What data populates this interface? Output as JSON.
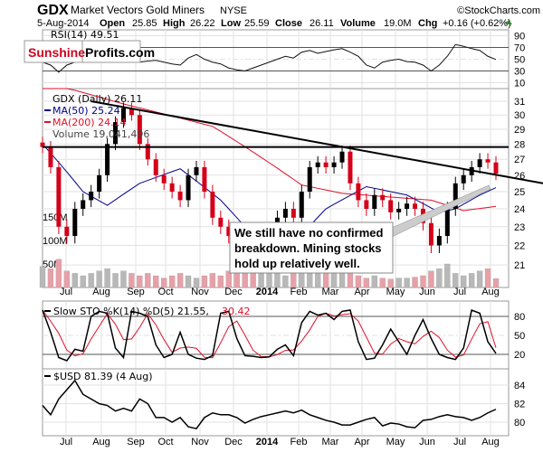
{
  "header": {
    "symbol": "GDX",
    "name": "Market Vectors Gold Miners",
    "exchange": "NYSE",
    "credit": "©StockCharts.com",
    "date": "5-Aug-2014",
    "open_label": "Open",
    "open": "25.85",
    "high_label": "High",
    "high": "26.22",
    "low_label": "Low",
    "low": "25.59",
    "close_label": "Close",
    "close": "26.11",
    "volume_label": "Volume",
    "volume": "19.0M",
    "chg_label": "Chg",
    "chg": "+0.16 (+0.62%)"
  },
  "logo": {
    "part1": "Sunshine",
    "part2": "Profits.com"
  },
  "annotation": {
    "lines": [
      "We still have no confirmed",
      "breakdown. Mining stocks",
      "hold up relatively well."
    ]
  },
  "colors": {
    "up": "#000000",
    "down": "#d4001a",
    "ma50": "#00008b",
    "ma200": "#e0102a",
    "volume": "#b8b8b8",
    "volume_down": "#e8a0a8"
  },
  "chart_data": [
    {
      "type": "line",
      "title": "RSI(14) 49.51",
      "panel": "rsi",
      "legend": "RSI(14) 49.51",
      "ylim": [
        0,
        100
      ],
      "yticks": [
        "90",
        "70",
        "50",
        "30",
        "10"
      ],
      "values": [
        45,
        40,
        28,
        40,
        45,
        48,
        55,
        58,
        70,
        65,
        60,
        55,
        45,
        47,
        48,
        45,
        42,
        40,
        52,
        58,
        50,
        45,
        42,
        35,
        32,
        30,
        35,
        40,
        45,
        50,
        55,
        52,
        62,
        65,
        60,
        63,
        66,
        68,
        62,
        55,
        40,
        35,
        45,
        48,
        50,
        46,
        45,
        40,
        30,
        40,
        55,
        75,
        72,
        68,
        65,
        55,
        49.51
      ]
    },
    {
      "type": "candlestick",
      "panel": "price",
      "frequency": "weekly (approx.)",
      "legend": [
        "GDX (Daily) 26.11",
        "MA(50) 25.24",
        "MA(200) 24.14",
        "Volume 19,041,496"
      ],
      "ylim": [
        20.5,
        32
      ],
      "scale": "log",
      "yticks": [
        "31",
        "30",
        "29",
        "28",
        "27",
        "26",
        "25",
        "24",
        "23",
        "22",
        "21"
      ],
      "volume_ticks": [
        "150M",
        "100M",
        "50M"
      ],
      "xticks": [
        "Jul",
        "Aug",
        "Sep",
        "Oct",
        "Nov",
        "Dec",
        "2014",
        "Feb",
        "Mar",
        "Apr",
        "May",
        "Jun",
        "Jul",
        "Aug"
      ],
      "close": [
        27.8,
        26.5,
        23.0,
        22.5,
        24.0,
        24.5,
        25.0,
        26.0,
        28.0,
        29.5,
        30.5,
        30.0,
        28.0,
        27.0,
        26.0,
        25.5,
        25.0,
        24.5,
        26.0,
        26.5,
        25.0,
        23.5,
        23.0,
        22.5,
        22.0,
        21.5,
        21.0,
        21.8,
        22.5,
        23.5,
        24.0,
        23.5,
        25.0,
        26.5,
        26.8,
        26.5,
        26.8,
        27.5,
        25.5,
        24.5,
        24.0,
        24.8,
        24.5,
        23.8,
        24.0,
        24.3,
        24.0,
        23.2,
        22.0,
        22.5,
        24.0,
        25.5,
        26.0,
        26.5,
        27.0,
        26.8,
        26.1
      ],
      "volume_m": [
        45,
        40,
        60,
        35,
        30,
        25,
        30,
        35,
        40,
        30,
        35,
        30,
        25,
        30,
        25,
        20,
        25,
        30,
        25,
        20,
        25,
        30,
        25,
        35,
        40,
        45,
        40,
        35,
        30,
        30,
        25,
        30,
        35,
        40,
        35,
        30,
        35,
        40,
        30,
        25,
        20,
        25,
        20,
        18,
        20,
        20,
        22,
        25,
        35,
        40,
        50,
        30,
        25,
        30,
        35,
        40,
        19
      ],
      "ma50_anchors": [
        [
          0,
          28.0
        ],
        [
          5,
          25.0
        ],
        [
          8,
          24.2
        ],
        [
          12,
          25.5
        ],
        [
          17,
          26.4
        ],
        [
          22,
          24.5
        ],
        [
          27,
          22.0
        ],
        [
          30,
          21.6
        ],
        [
          35,
          24.0
        ],
        [
          40,
          25.3
        ],
        [
          45,
          24.8
        ],
        [
          49,
          23.8
        ],
        [
          51,
          24.0
        ],
        [
          54,
          24.8
        ],
        [
          56,
          25.24
        ]
      ],
      "ma200_anchors": [
        [
          0,
          32.5
        ],
        [
          10,
          30.8
        ],
        [
          21,
          29.2
        ],
        [
          32,
          25.4
        ],
        [
          37,
          24.9
        ],
        [
          48,
          24.5
        ],
        [
          52,
          23.9
        ],
        [
          56,
          24.14
        ]
      ],
      "trendlines": {
        "descending": [
          [
            6,
            31.0
          ],
          [
            62,
            25.5
          ]
        ],
        "horizontal": 27.8
      }
    },
    {
      "type": "line",
      "panel": "stochastic",
      "legend": "Slow STO %K(14) %D(5) 21.55,",
      "legend_d": "30.42",
      "ylim": [
        0,
        100
      ],
      "yticks": [
        "80",
        "50",
        "20"
      ],
      "k": [
        90,
        55,
        15,
        10,
        28,
        25,
        80,
        88,
        85,
        30,
        15,
        88,
        85,
        80,
        35,
        15,
        20,
        55,
        20,
        14,
        12,
        18,
        85,
        88,
        45,
        18,
        17,
        15,
        16,
        28,
        35,
        18,
        70,
        88,
        82,
        85,
        75,
        88,
        90,
        40,
        12,
        14,
        35,
        60,
        40,
        20,
        50,
        75,
        45,
        20,
        15,
        12,
        30,
        90,
        85,
        40,
        21.55
      ]
    },
    {
      "type": "line",
      "panel": "usd",
      "legend": "$USD 81.39 (4 Aug)",
      "ylim": [
        78.6,
        85.8
      ],
      "yticks": [
        "84",
        "82",
        "80"
      ],
      "values": [
        81.8,
        80.8,
        82.5,
        83.5,
        84.5,
        83.0,
        82.5,
        82.0,
        81.8,
        81.2,
        81.5,
        81.2,
        82.5,
        82.0,
        80.5,
        80.5,
        80.0,
        80.5,
        79.5,
        79.3,
        80.5,
        81.0,
        80.8,
        80.8,
        80.5,
        79.9,
        80.3,
        80.6,
        80.8,
        81.0,
        81.2,
        81.0,
        81.3,
        80.8,
        80.5,
        80.2,
        80.0,
        79.7,
        79.7,
        80.0,
        80.3,
        80.5,
        79.6,
        79.9,
        79.8,
        79.5,
        79.4,
        80.2,
        80.3,
        80.6,
        80.8,
        80.6,
        80.5,
        80.2,
        80.5,
        81.0,
        81.39
      ]
    }
  ]
}
